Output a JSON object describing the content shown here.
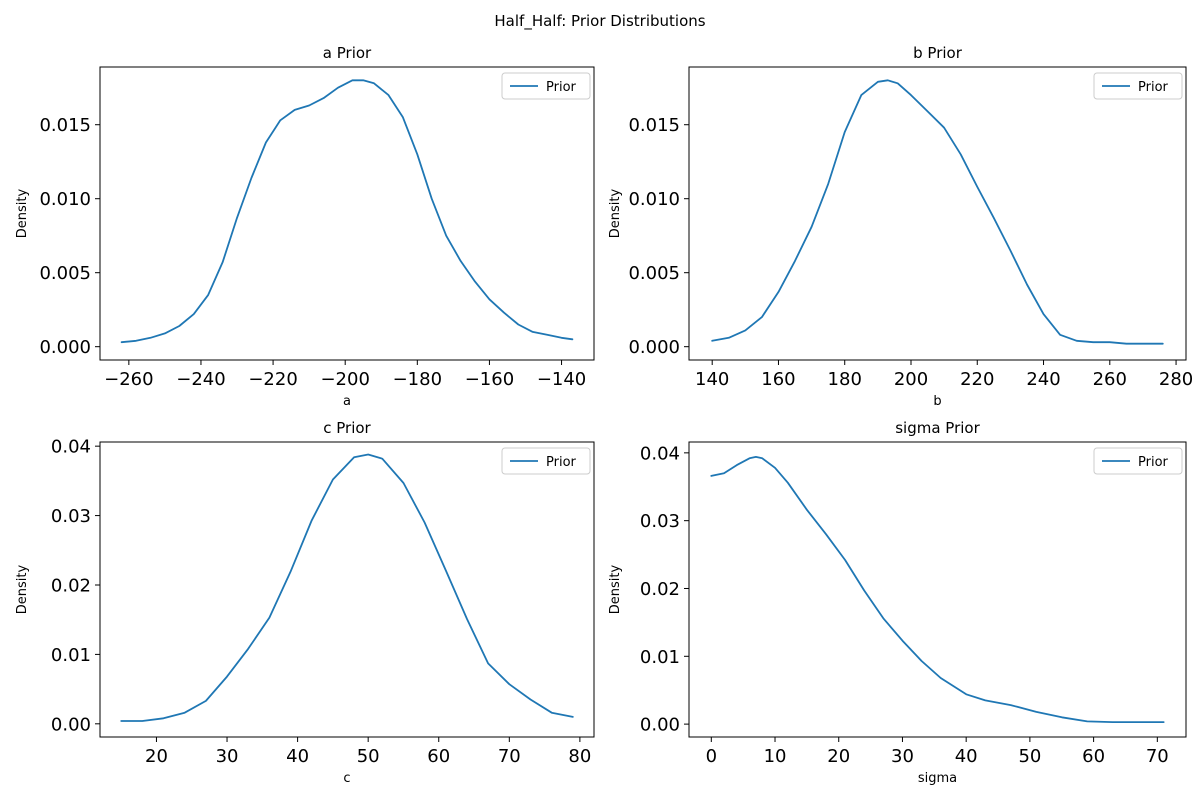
{
  "figure": {
    "suptitle": "Half_Half: Prior Distributions"
  },
  "colors": {
    "series": "#1f77b4",
    "axis": "#000000",
    "legend_border": "#cccccc"
  },
  "chart_data": [
    {
      "type": "line",
      "title": "a Prior",
      "xlabel": "a",
      "ylabel": "Density",
      "xlim": [
        -268,
        -131
      ],
      "ylim": [
        -0.0009,
        0.0189
      ],
      "xticks": [
        -260,
        -240,
        -220,
        -200,
        -180,
        -160,
        -140
      ],
      "xtick_labels": [
        "−260",
        "−240",
        "−220",
        "−200",
        "−180",
        "−160",
        "−140"
      ],
      "yticks": [
        0.0,
        0.005,
        0.01,
        0.015
      ],
      "ytick_labels": [
        "0.000",
        "0.005",
        "0.010",
        "0.015"
      ],
      "legend": "top-right",
      "grid": false,
      "series": [
        {
          "name": "Prior",
          "x": [
            -262,
            -258,
            -254,
            -250,
            -246,
            -242,
            -238,
            -234,
            -230,
            -226,
            -222,
            -218,
            -214,
            -210,
            -206,
            -202,
            -198,
            -195,
            -192,
            -188,
            -184,
            -180,
            -176,
            -172,
            -168,
            -164,
            -160,
            -156,
            -152,
            -148,
            -144,
            -140,
            -137
          ],
          "y": [
            0.0003,
            0.0004,
            0.0006,
            0.0009,
            0.0014,
            0.0022,
            0.0035,
            0.0057,
            0.0087,
            0.0114,
            0.0138,
            0.0153,
            0.016,
            0.0163,
            0.0168,
            0.0175,
            0.018,
            0.018,
            0.0178,
            0.017,
            0.0155,
            0.013,
            0.01,
            0.0075,
            0.0058,
            0.0044,
            0.0032,
            0.0023,
            0.0015,
            0.001,
            0.0008,
            0.0006,
            0.0005
          ]
        }
      ]
    },
    {
      "type": "line",
      "title": "b Prior",
      "xlabel": "b",
      "ylabel": "Density",
      "xlim": [
        133,
        283
      ],
      "ylim": [
        -0.0009,
        0.0189
      ],
      "xticks": [
        140,
        160,
        180,
        200,
        220,
        240,
        260,
        280
      ],
      "xtick_labels": [
        "140",
        "160",
        "180",
        "200",
        "220",
        "240",
        "260",
        "280"
      ],
      "yticks": [
        0.0,
        0.005,
        0.01,
        0.015
      ],
      "ytick_labels": [
        "0.000",
        "0.005",
        "0.010",
        "0.015"
      ],
      "legend": "top-right",
      "grid": false,
      "series": [
        {
          "name": "Prior",
          "x": [
            140,
            145,
            150,
            155,
            160,
            165,
            170,
            175,
            180,
            185,
            190,
            193,
            196,
            200,
            205,
            210,
            215,
            220,
            225,
            230,
            235,
            240,
            245,
            250,
            255,
            260,
            265,
            270,
            276
          ],
          "y": [
            0.0004,
            0.0006,
            0.0011,
            0.002,
            0.0037,
            0.0058,
            0.0081,
            0.011,
            0.0145,
            0.017,
            0.0179,
            0.018,
            0.0178,
            0.017,
            0.0159,
            0.0148,
            0.013,
            0.0108,
            0.0087,
            0.0065,
            0.0042,
            0.0022,
            0.0008,
            0.0004,
            0.0003,
            0.0003,
            0.0002,
            0.0002,
            0.0002
          ]
        }
      ]
    },
    {
      "type": "line",
      "title": "c Prior",
      "xlabel": "c",
      "ylabel": "Density",
      "xlim": [
        12,
        82
      ],
      "ylim": [
        -0.0019,
        0.0406
      ],
      "xticks": [
        20,
        30,
        40,
        50,
        60,
        70,
        80
      ],
      "xtick_labels": [
        "20",
        "30",
        "40",
        "50",
        "60",
        "70",
        "80"
      ],
      "yticks": [
        0.0,
        0.01,
        0.02,
        0.03,
        0.04
      ],
      "ytick_labels": [
        "0.00",
        "0.01",
        "0.02",
        "0.03",
        "0.04"
      ],
      "legend": "top-right",
      "grid": false,
      "series": [
        {
          "name": "Prior",
          "x": [
            15,
            18,
            21,
            24,
            27,
            30,
            33,
            36,
            39,
            42,
            45,
            48,
            50,
            52,
            55,
            58,
            61,
            64,
            67,
            70,
            73,
            76,
            79
          ],
          "y": [
            0.0004,
            0.0004,
            0.0008,
            0.0016,
            0.0033,
            0.0068,
            0.0108,
            0.0153,
            0.0219,
            0.0293,
            0.0352,
            0.0384,
            0.0388,
            0.0382,
            0.0347,
            0.029,
            0.0221,
            0.0151,
            0.0087,
            0.0057,
            0.0035,
            0.0016,
            0.001
          ]
        }
      ]
    },
    {
      "type": "line",
      "title": "sigma Prior",
      "xlabel": "sigma",
      "ylabel": "Density",
      "xlim": [
        -3.5,
        74.5
      ],
      "ylim": [
        -0.0019,
        0.0416
      ],
      "xticks": [
        0,
        10,
        20,
        30,
        40,
        50,
        60,
        70
      ],
      "xtick_labels": [
        "0",
        "10",
        "20",
        "30",
        "40",
        "50",
        "60",
        "70"
      ],
      "yticks": [
        0.0,
        0.01,
        0.02,
        0.03,
        0.04
      ],
      "ytick_labels": [
        "0.00",
        "0.01",
        "0.02",
        "0.03",
        "0.04"
      ],
      "legend": "top-right",
      "grid": false,
      "series": [
        {
          "name": "Prior",
          "x": [
            0,
            2,
            4,
            6,
            7,
            8,
            10,
            12,
            15,
            18,
            21,
            24,
            27,
            30,
            33,
            36,
            40,
            43,
            47,
            51,
            55,
            59,
            63,
            67,
            71
          ],
          "y": [
            0.0366,
            0.037,
            0.0382,
            0.0392,
            0.0394,
            0.0392,
            0.0378,
            0.0356,
            0.0316,
            0.028,
            0.0242,
            0.0197,
            0.0156,
            0.0123,
            0.0093,
            0.0068,
            0.0044,
            0.0035,
            0.0028,
            0.0018,
            0.001,
            0.0004,
            0.0003,
            0.0003,
            0.0003
          ]
        }
      ]
    }
  ]
}
